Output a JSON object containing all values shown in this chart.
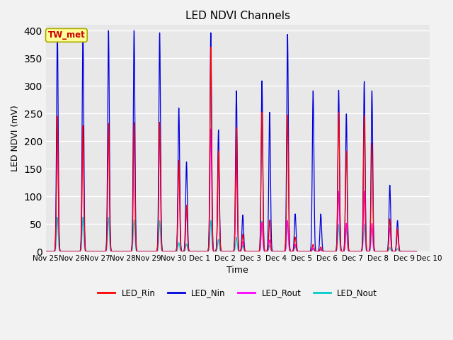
{
  "title": "LED NDVI Channels",
  "xlabel": "Time",
  "ylabel": "LED NDVI (mV)",
  "ylim": [
    0,
    410
  ],
  "yticks": [
    0,
    50,
    100,
    150,
    200,
    250,
    300,
    350,
    400
  ],
  "background_color": "#e8e8e8",
  "fig_background": "#f2f2f2",
  "grid_color": "#ffffff",
  "label_box_text": "TW_met",
  "label_box_facecolor": "#ffff99",
  "label_box_edgecolor": "#aaaa00",
  "label_text_color": "#cc0000",
  "lines": {
    "LED_Rin": {
      "color": "#ff0000",
      "zorder": 4,
      "lw": 0.9
    },
    "LED_Nin": {
      "color": "#0000dd",
      "zorder": 3,
      "lw": 0.9
    },
    "LED_Rout": {
      "color": "#ff00ff",
      "zorder": 2,
      "lw": 0.9
    },
    "LED_Nout": {
      "color": "#00cccc",
      "zorder": 1,
      "lw": 0.9
    }
  },
  "peaks": [
    {
      "day": 0.45,
      "Nin": 400,
      "Rin": 245,
      "Rout": 230,
      "Nout": 62
    },
    {
      "day": 1.45,
      "Nin": 400,
      "Rin": 228,
      "Rout": 220,
      "Nout": 62
    },
    {
      "day": 2.45,
      "Nin": 400,
      "Rin": 232,
      "Rout": 222,
      "Nout": 62
    },
    {
      "day": 3.45,
      "Nin": 400,
      "Rin": 233,
      "Rout": 225,
      "Nout": 58
    },
    {
      "day": 4.45,
      "Nin": 396,
      "Rin": 234,
      "Rout": 226,
      "Nout": 56
    },
    {
      "day": 5.2,
      "Nin": 260,
      "Rin": 165,
      "Rout": 163,
      "Nout": 16
    },
    {
      "day": 5.5,
      "Nin": 162,
      "Rin": 84,
      "Rout": 79,
      "Nout": 14
    },
    {
      "day": 6.45,
      "Nin": 396,
      "Rin": 370,
      "Rout": 222,
      "Nout": 56
    },
    {
      "day": 6.75,
      "Nin": 220,
      "Rin": 182,
      "Rout": 177,
      "Nout": 22
    },
    {
      "day": 7.45,
      "Nin": 291,
      "Rin": 224,
      "Rout": 177,
      "Nout": 26
    },
    {
      "day": 7.7,
      "Nin": 66,
      "Rin": 31,
      "Rout": 18,
      "Nout": 11
    },
    {
      "day": 8.45,
      "Nin": 309,
      "Rin": 252,
      "Rout": 52,
      "Nout": 55
    },
    {
      "day": 8.75,
      "Nin": 252,
      "Rin": 57,
      "Rout": 21,
      "Nout": 11
    },
    {
      "day": 9.45,
      "Nin": 393,
      "Rin": 247,
      "Rout": 56,
      "Nout": 55
    },
    {
      "day": 9.75,
      "Nin": 68,
      "Rin": 26,
      "Rout": 13,
      "Nout": 9
    },
    {
      "day": 10.45,
      "Nin": 291,
      "Rin": 13,
      "Rout": 6,
      "Nout": 5
    },
    {
      "day": 10.75,
      "Nin": 68,
      "Rin": 8,
      "Rout": 4,
      "Nout": 3
    },
    {
      "day": 11.45,
      "Nin": 292,
      "Rin": 252,
      "Rout": 109,
      "Nout": 49
    },
    {
      "day": 11.75,
      "Nin": 249,
      "Rin": 182,
      "Rout": 51,
      "Nout": 41
    },
    {
      "day": 12.45,
      "Nin": 308,
      "Rin": 246,
      "Rout": 109,
      "Nout": 49
    },
    {
      "day": 12.75,
      "Nin": 291,
      "Rin": 196,
      "Rout": 51,
      "Nout": 43
    },
    {
      "day": 13.45,
      "Nin": 120,
      "Rin": 59,
      "Rout": 43,
      "Nout": 7
    },
    {
      "day": 13.75,
      "Nin": 56,
      "Rin": 41,
      "Rout": 36,
      "Nout": 5
    }
  ],
  "x_tick_labels": [
    "Nov 25",
    "Nov 26",
    "Nov 27",
    "Nov 28",
    "Nov 29",
    "Nov 30",
    "Dec 1",
    "Dec 2",
    "Dec 3",
    "Dec 4",
    "Dec 5",
    "Dec 6",
    "Dec 7",
    "Dec 8",
    "Dec 9",
    "Dec 10"
  ],
  "x_tick_positions": [
    0,
    1,
    2,
    3,
    4,
    5,
    6,
    7,
    8,
    9,
    10,
    11,
    12,
    13,
    14,
    15
  ]
}
